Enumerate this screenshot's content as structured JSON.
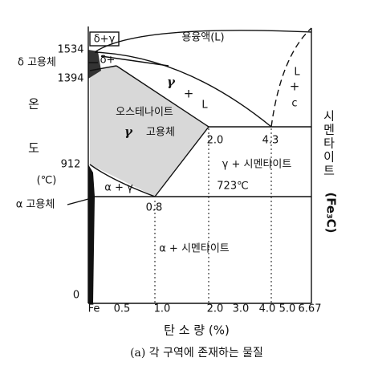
{
  "regions": {
    "liquid": "용융액(L)",
    "delta_gamma": "δ+γ",
    "delta_plus": "δ+",
    "gamma_l": [
      "γ",
      "+",
      "L"
    ],
    "l_c": [
      "L",
      "+",
      "c"
    ],
    "austenite": "오스테나이트",
    "gamma_solid": [
      "γ",
      "고용체"
    ],
    "gamma_cementite": "γ + 시멘타이트",
    "alpha_gamma": "α + γ",
    "alpha_cementite": "α + 시멘타이트"
  },
  "points": {
    "c_2_0": "2.0",
    "c_4_3": "4.3",
    "t_723": "723℃",
    "c_0_8": "0.8"
  },
  "left": {
    "t_1534": "1534",
    "delta_solid": "δ 고용체",
    "t_1394": "1394",
    "on": "온",
    "do": "도",
    "t_912": "912",
    "unit": "(℃)",
    "alpha_solid": "α 고용체",
    "t_0": "0"
  },
  "right": {
    "cementite": [
      "시",
      "멘",
      "타",
      "이",
      "트"
    ],
    "formula": "(Fe₃C)"
  },
  "x_ticks": [
    "Fe",
    "0.5",
    "1.0",
    "2.0",
    "3.0",
    "4.0",
    "5.0",
    "6.67"
  ],
  "x_title": "탄 소 량 (%)",
  "caption": "(a) 각 구역에 존재하는 물질"
}
